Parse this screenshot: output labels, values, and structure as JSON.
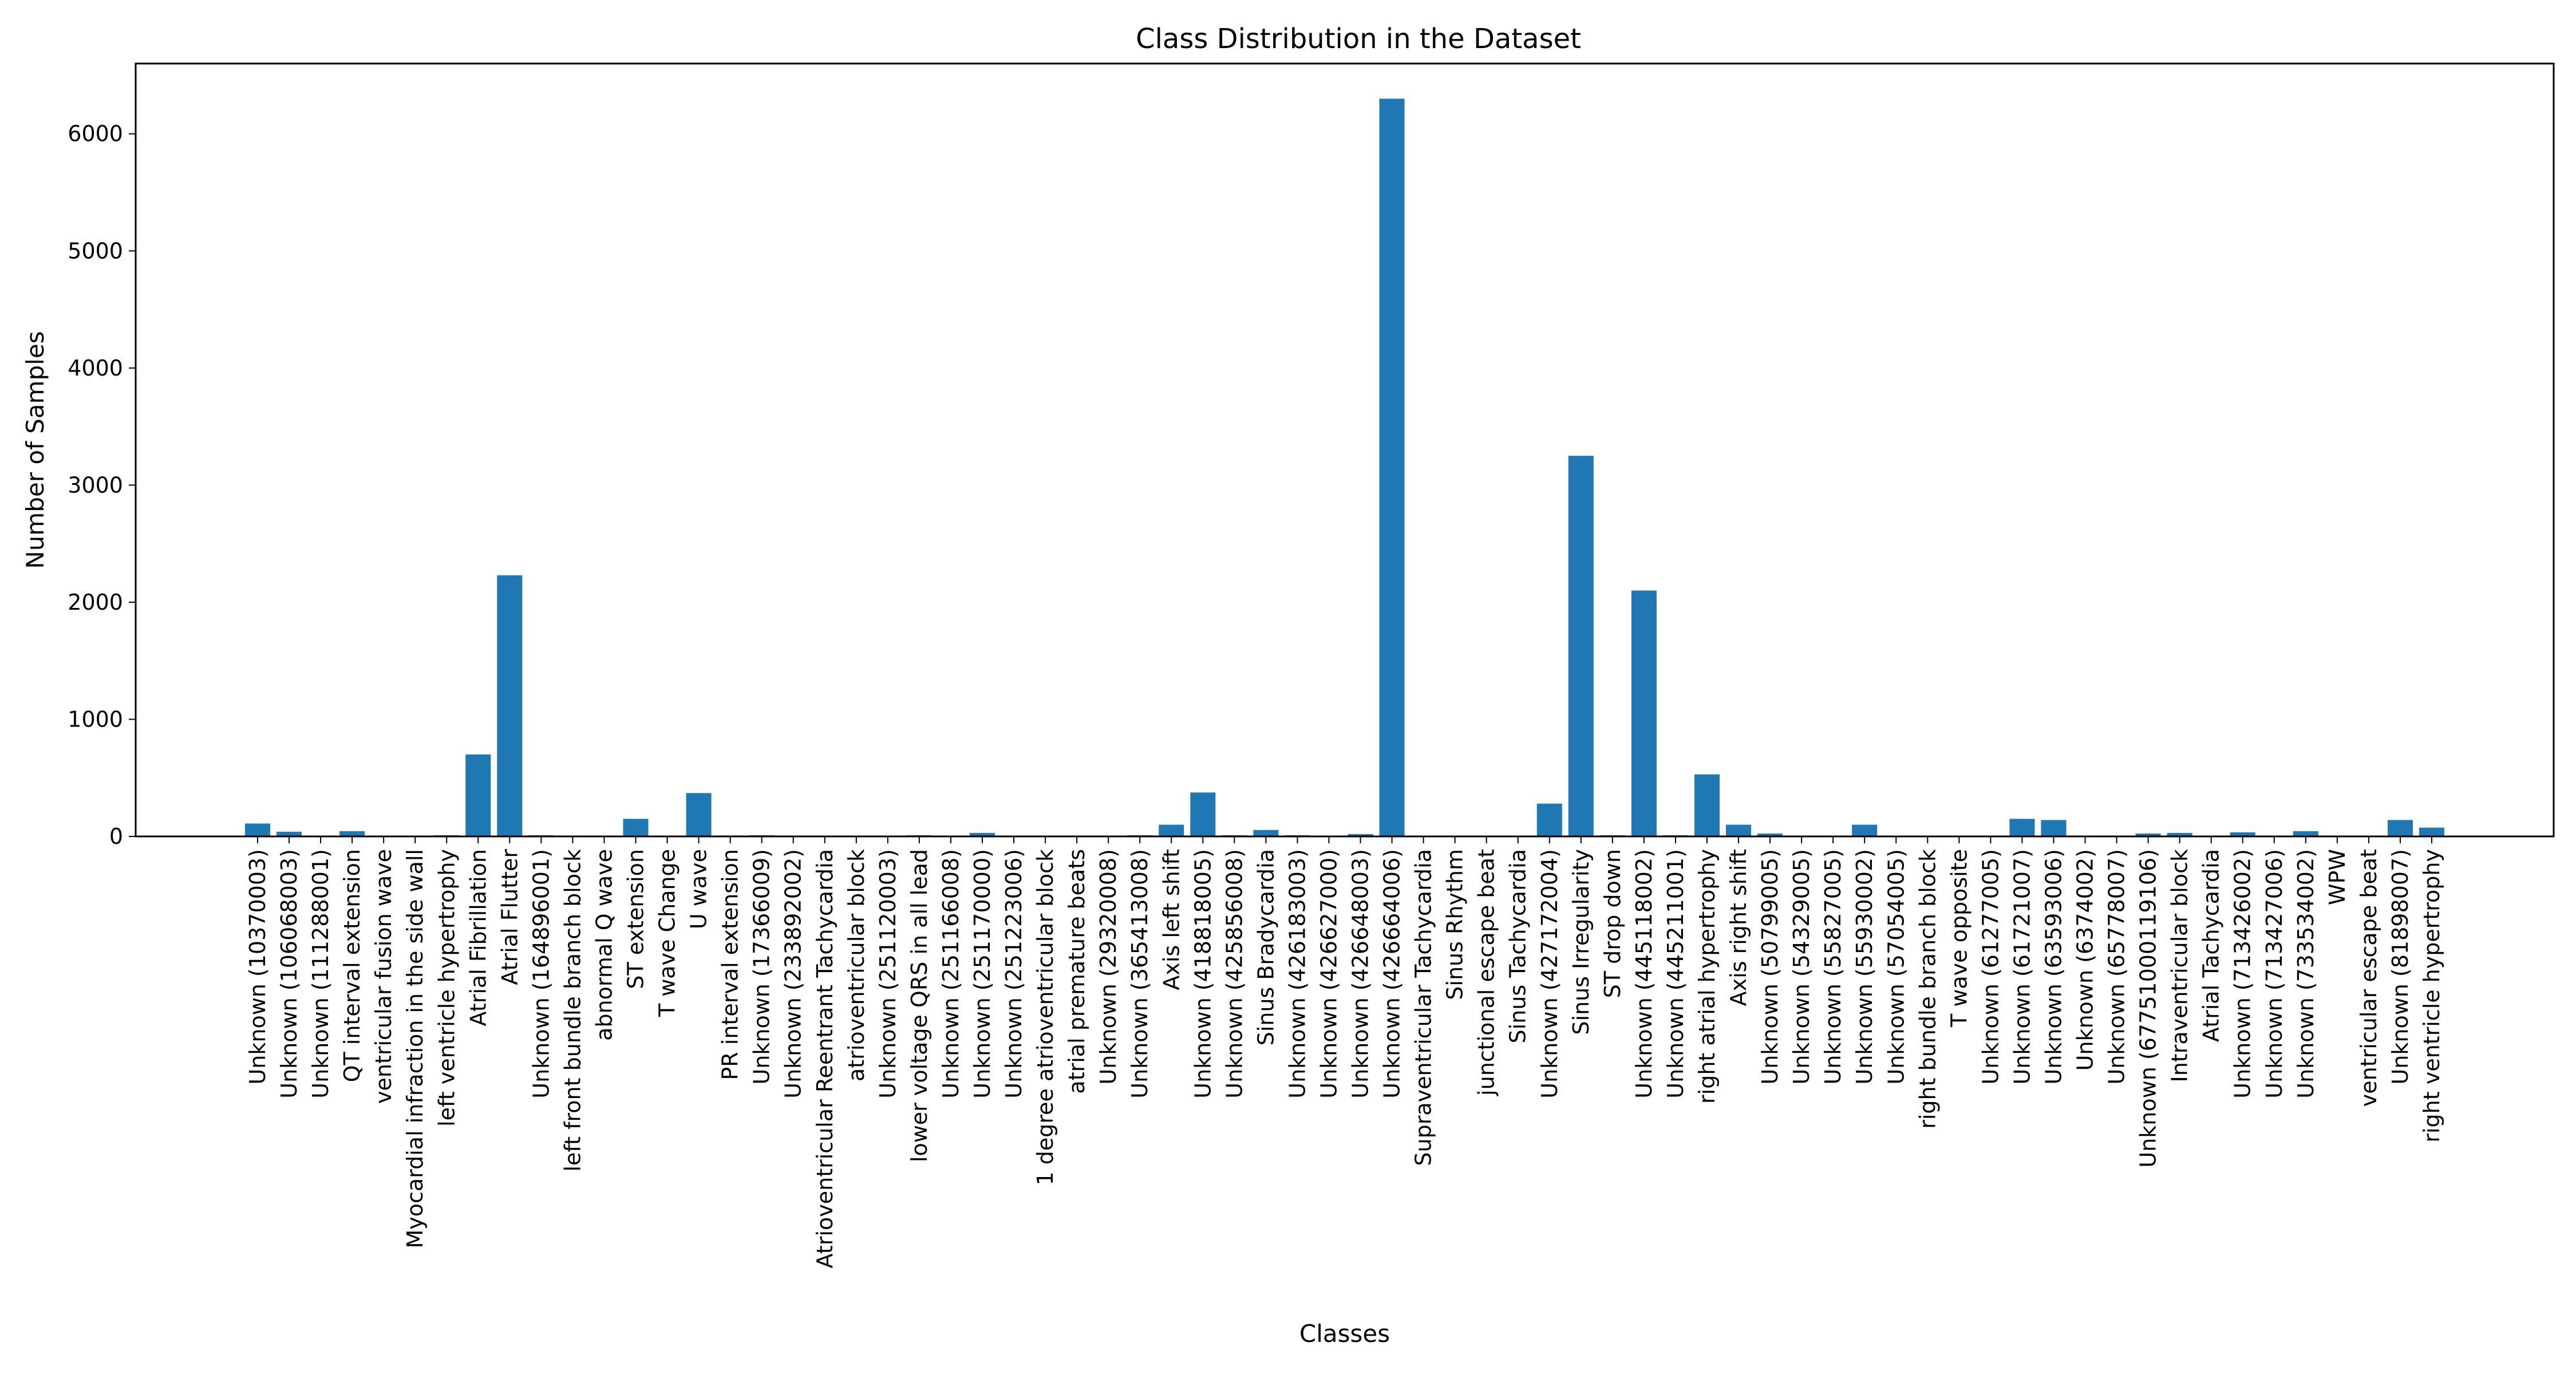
{
  "chart_data": {
    "type": "bar",
    "title": "Class Distribution in the Dataset",
    "xlabel": "Classes",
    "ylabel": "Number of Samples",
    "ylim": [
      0,
      6600
    ],
    "yticks": [
      0,
      1000,
      2000,
      3000,
      4000,
      5000,
      6000
    ],
    "grid": false,
    "bar_color": "#1f77b4",
    "categories": [
      "Unknown (10370003)",
      "Unknown (106068003)",
      "Unknown (111288001)",
      "QT interval extension",
      "ventricular fusion wave",
      "Myocardial infraction in the side wall",
      "left ventricle hypertrophy",
      "Atrial Fibrillation",
      "Atrial Flutter",
      "Unknown (164896001)",
      "left front bundle branch block",
      "abnormal Q wave",
      "ST extension",
      "T wave Change",
      "U wave",
      "PR interval extension",
      "Unknown (17366009)",
      "Unknown (233892002)",
      "Atrioventricular Reentrant Tachycardia",
      "atrioventricular block",
      "Unknown (251120003)",
      "lower voltage QRS in all lead",
      "Unknown (251166008)",
      "Unknown (251170000)",
      "Unknown (251223006)",
      "1 degree atrioventricular block",
      "atrial premature beats",
      "Unknown (29320008)",
      "Unknown (365413008)",
      "Axis left shift",
      "Unknown (418818005)",
      "Unknown (425856008)",
      "Sinus Bradycardia",
      "Unknown (426183003)",
      "Unknown (426627000)",
      "Unknown (426648003)",
      "Unknown (426664006)",
      "Supraventricular Tachycardia",
      "Sinus Rhythm",
      "junctional escape beat",
      "Sinus Tachycardia",
      "Unknown (427172004)",
      "Sinus Irregularity",
      "ST drop down",
      "Unknown (445118002)",
      "Unknown (445211001)",
      "right atrial hypertrophy",
      "Axis right shift",
      "Unknown (50799005)",
      "Unknown (54329005)",
      "Unknown (55827005)",
      "Unknown (55930002)",
      "Unknown (57054005)",
      "right bundle branch block",
      "T wave opposite",
      "Unknown (61277005)",
      "Unknown (61721007)",
      "Unknown (63593006)",
      "Unknown (6374002)",
      "Unknown (65778007)",
      "Unknown (67751000119106)",
      "Intraventricular block",
      "Atrial Tachycardia",
      "Unknown (713426002)",
      "Unknown (713427006)",
      "Unknown (733534002)",
      "WPW",
      "ventricular escape beat",
      "Unknown (81898007)",
      "right ventricle hypertrophy"
    ],
    "values": [
      110,
      40,
      5,
      45,
      3,
      3,
      10,
      700,
      2230,
      10,
      5,
      5,
      150,
      3,
      370,
      8,
      10,
      5,
      3,
      3,
      3,
      10,
      5,
      30,
      5,
      3,
      3,
      3,
      10,
      100,
      375,
      10,
      55,
      10,
      5,
      20,
      6300,
      3,
      3,
      3,
      3,
      280,
      3250,
      10,
      2100,
      10,
      530,
      100,
      25,
      5,
      5,
      100,
      5,
      3,
      3,
      5,
      150,
      140,
      5,
      3,
      25,
      30,
      5,
      35,
      5,
      45,
      3,
      3,
      140,
      75
    ]
  }
}
